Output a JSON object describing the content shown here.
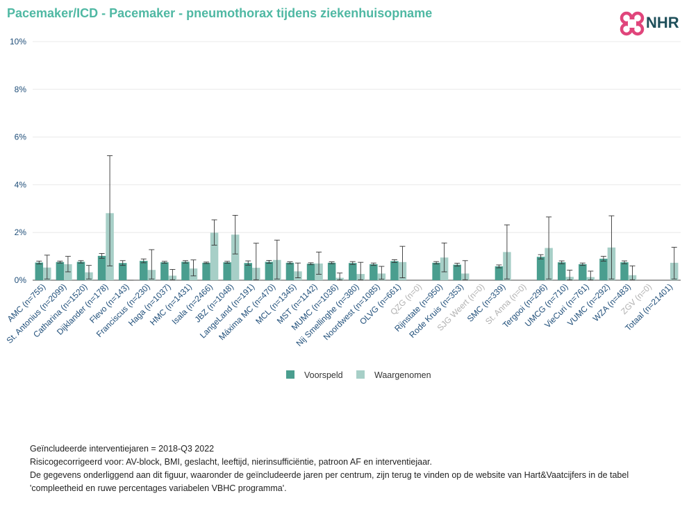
{
  "header": {
    "title": "Pacemaker/ICD - Pacemaker - pneumothorax tijdens ziekenhuisopname",
    "logo_text": "NHR"
  },
  "colors": {
    "title": "#4fb8a3",
    "predicted": "#4a9e8f",
    "observed": "#a7cfc7",
    "axis_text": "#1f4e79",
    "disabled_text": "#b0b0b0",
    "logo_heart": "#e0457b"
  },
  "chart_data": {
    "type": "bar",
    "title": "Pacemaker/ICD - Pacemaker - pneumothorax tijdens ziekenhuisopname",
    "xlabel": "",
    "ylabel": "",
    "ylim": [
      0,
      10
    ],
    "yticks": [
      "0%",
      "2%",
      "4%",
      "6%",
      "8%",
      "10%"
    ],
    "grid": true,
    "legend_position": "bottom-center",
    "categories": [
      "AMC (n=755)",
      "St. Antonius (n=2099)",
      "Catharina (n=1520)",
      "Dijklander (n=178)",
      "Flevo (n=143)",
      "Franciscus (n=230)",
      "Haga (n=1037)",
      "HMC (n=1431)",
      "Isala (n=2466)",
      "JBZ (n=1048)",
      "LangeLand (n=191)",
      "Máxima MC (n=470)",
      "MCL (n=1345)",
      "MST (n=1142)",
      "MUMC (n=1036)",
      "Nij Smellinghe (n=380)",
      "Noordwest (n=1085)",
      "OLVG (n=661)",
      "QZG (n=0)",
      "Rijnstate (n=950)",
      "Rode Kruis (n=353)",
      "SJG Weert (n=0)",
      "SMC (n=339)",
      "St. Anna (n=0)",
      "Tergooi (n=296)",
      "UMCG (n=710)",
      "VieCuri (n=761)",
      "VUMC (n=292)",
      "WZA (n=483)",
      "ZGV (n=0)",
      "Totaal (n=21401)"
    ],
    "disabled_categories": [
      "QZG (n=0)",
      "SJG Weert (n=0)",
      "St. Anna (n=0)",
      "ZGV (n=0)"
    ],
    "series": [
      {
        "name": "Voorspeld",
        "values": [
          0.74,
          0.76,
          0.77,
          1.02,
          0.72,
          0.81,
          0.75,
          0.77,
          0.73,
          0.75,
          0.72,
          0.77,
          0.73,
          0.69,
          0.73,
          0.72,
          0.67,
          0.8,
          null,
          0.73,
          0.65,
          null,
          0.58,
          null,
          0.98,
          0.75,
          0.67,
          0.9,
          0.75,
          null,
          null
        ],
        "err_low": [
          0.68,
          0.72,
          0.72,
          0.92,
          0.62,
          0.73,
          0.71,
          0.72,
          0.7,
          0.71,
          0.63,
          0.71,
          0.69,
          0.65,
          0.69,
          0.66,
          0.62,
          0.74,
          null,
          0.68,
          0.59,
          null,
          0.52,
          null,
          0.89,
          0.69,
          0.62,
          0.8,
          0.69,
          null,
          null
        ],
        "err_high": [
          0.8,
          0.8,
          0.82,
          1.12,
          0.82,
          0.89,
          0.79,
          0.82,
          0.76,
          0.79,
          0.81,
          0.83,
          0.77,
          0.73,
          0.77,
          0.78,
          0.72,
          0.86,
          null,
          0.78,
          0.71,
          null,
          0.64,
          null,
          1.07,
          0.81,
          0.72,
          1.0,
          0.81,
          null,
          null
        ]
      },
      {
        "name": "Waargenomen",
        "values": [
          0.53,
          0.67,
          0.33,
          2.81,
          0.0,
          0.43,
          0.19,
          0.49,
          1.99,
          1.91,
          0.52,
          0.85,
          0.37,
          0.7,
          0.1,
          0.26,
          0.28,
          0.76,
          null,
          0.95,
          0.28,
          null,
          1.18,
          null,
          1.35,
          0.14,
          0.13,
          1.37,
          0.21,
          null,
          0.73
        ],
        "err_low": [
          0.05,
          0.35,
          0.05,
          0.6,
          0.0,
          0.05,
          0.02,
          0.18,
          1.47,
          1.1,
          0.02,
          0.05,
          0.1,
          0.25,
          0.01,
          0.02,
          0.04,
          0.1,
          null,
          0.35,
          0.02,
          null,
          0.05,
          null,
          0.05,
          0.01,
          0.01,
          0.05,
          0.02,
          null,
          0.05
        ],
        "err_high": [
          1.05,
          1.0,
          0.62,
          5.22,
          0.0,
          1.28,
          0.45,
          0.85,
          2.53,
          2.72,
          1.55,
          1.68,
          0.72,
          1.18,
          0.3,
          0.75,
          0.58,
          1.42,
          null,
          1.56,
          0.82,
          null,
          2.32,
          null,
          2.65,
          0.42,
          0.38,
          2.7,
          0.6,
          null,
          1.38
        ]
      }
    ]
  },
  "legend": {
    "predicted": "Voorspeld",
    "observed": "Waargenomen"
  },
  "footnotes": {
    "line1": "Geïncludeerde interventiejaren = 2018-Q3 2022",
    "line2": "Risicogecorrigeerd voor: AV-block, BMI, geslacht, leeftijd, nierinsufficiëntie, patroon AF en interventiejaar.",
    "line3": "De gegevens onderliggend aan dit figuur, waaronder de geïncludeerde jaren per centrum, zijn terug te vinden op de website van Hart&Vaatcijfers in de tabel",
    "line4": "'compleetheid en ruwe percentages variabelen VBHC programma'."
  }
}
